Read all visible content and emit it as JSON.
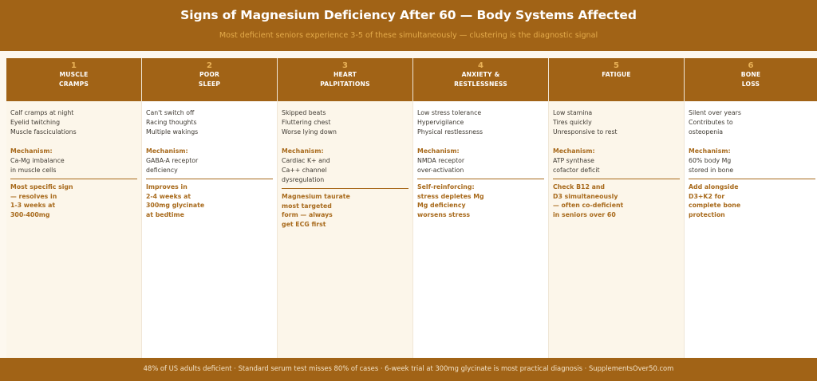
{
  "header": {
    "title": "Signs of Magnesium Deficiency After 60 — Body Systems Affected",
    "subtitle": "Most deficient seniors experience 3-5 of these simultaneously — clustering is the diagnostic signal"
  },
  "columns": [
    {
      "number": "1",
      "heading": [
        "MUSCLE",
        "CRAMPS"
      ],
      "symptoms": [
        "Calf cramps at night",
        "Eyelid twitching",
        "Muscle fasciculations"
      ],
      "mechanism_label": "Mechanism:",
      "mechanism": [
        "Ca-Mg imbalance",
        "in muscle cells"
      ],
      "note": [
        "Most specific sign",
        "— resolves in",
        "1-3 weeks at",
        "300-400mg"
      ]
    },
    {
      "number": "2",
      "heading": [
        "POOR",
        "SLEEP"
      ],
      "symptoms": [
        "Can't switch off",
        "Racing thoughts",
        "Multiple wakings"
      ],
      "mechanism_label": "Mechanism:",
      "mechanism": [
        "GABA-A receptor",
        "deficiency"
      ],
      "note": [
        "Improves in",
        "2-4 weeks at",
        "300mg glycinate",
        "at bedtime"
      ]
    },
    {
      "number": "3",
      "heading": [
        "HEART",
        "PALPITATIONS"
      ],
      "symptoms": [
        "Skipped beats",
        "Fluttering chest",
        "Worse lying down"
      ],
      "mechanism_label": "Mechanism:",
      "mechanism": [
        "Cardiac K+ and",
        "Ca++ channel",
        "dysregulation"
      ],
      "note": [
        "Magnesium taurate",
        "most targeted",
        "form — always",
        "get ECG first"
      ]
    },
    {
      "number": "4",
      "heading": [
        "ANXIETY &",
        "RESTLESSNESS"
      ],
      "symptoms": [
        "Low stress tolerance",
        "Hypervigilance",
        "Physical restlessness"
      ],
      "mechanism_label": "Mechanism:",
      "mechanism": [
        "NMDA receptor",
        "over-activation"
      ],
      "note": [
        "Self-reinforcing:",
        "stress depletes Mg",
        "Mg deficiency",
        "worsens stress"
      ]
    },
    {
      "number": "5",
      "heading": [
        "FATIGUE"
      ],
      "symptoms": [
        "Low stamina",
        "Tires quickly",
        "Unresponsive to rest"
      ],
      "mechanism_label": "Mechanism:",
      "mechanism": [
        "ATP synthase",
        "cofactor deficit"
      ],
      "note": [
        "Check B12 and",
        "D3 simultaneously",
        "— often co-deficient",
        "in seniors over 60"
      ]
    },
    {
      "number": "6",
      "heading": [
        "BONE",
        "LOSS"
      ],
      "symptoms": [
        "Silent over years",
        "Contributes to",
        "osteopenia"
      ],
      "mechanism_label": "Mechanism:",
      "mechanism": [
        "60% body Mg",
        "stored in bone"
      ],
      "note": [
        "Add alongside",
        "D3+K2 for",
        "complete bone",
        "protection"
      ]
    }
  ],
  "footer": {
    "text": "48% of US adults deficient · Standard serum test misses 80% of cases · 6-week trial at 300mg glycinate is most practical diagnosis · SupplementsOver50.com"
  },
  "colors": {
    "brand_brown": "#a16316",
    "accent_gold": "#e3aa4a",
    "note_brown": "#a86a1c",
    "cream": "#fcf6ea",
    "white": "#ffffff",
    "body_text": "#3f3a32"
  }
}
